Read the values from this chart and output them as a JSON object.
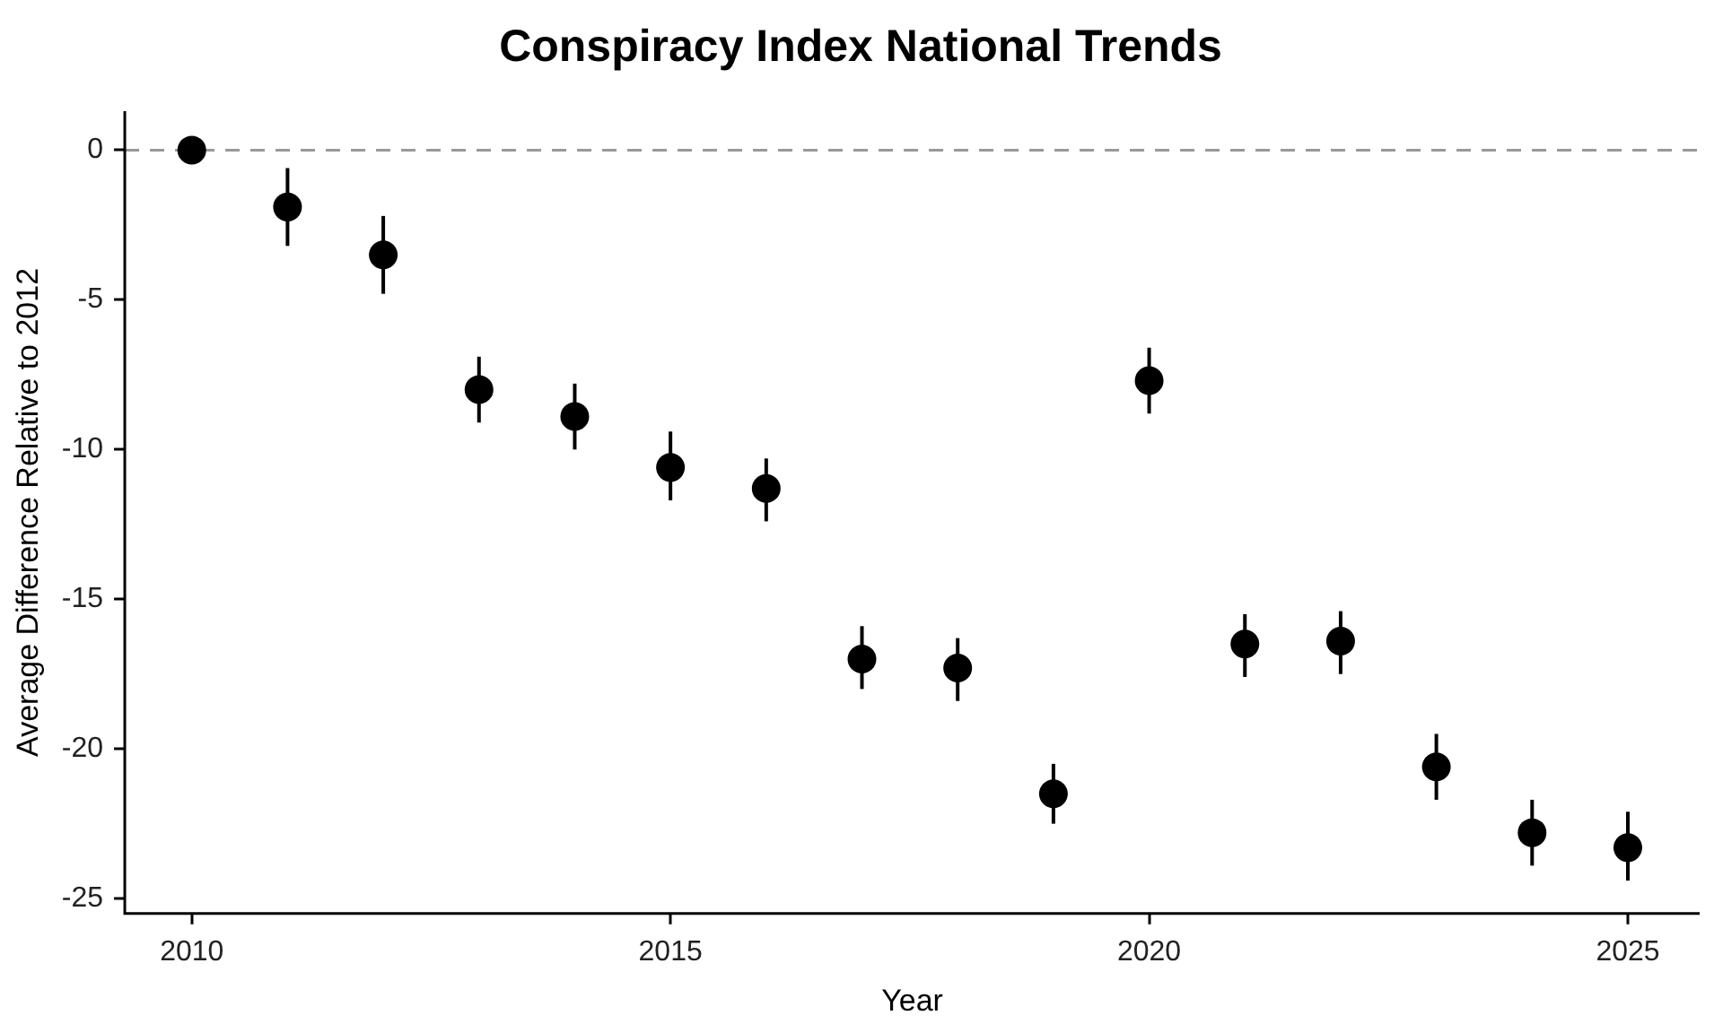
{
  "chart_data": {
    "type": "scatter",
    "title": "Conspiracy Index National Trends",
    "xlabel": "Year",
    "ylabel": "Average Difference Relative to 2012",
    "x": [
      2010,
      2011,
      2012,
      2013,
      2014,
      2015,
      2016,
      2017,
      2018,
      2019,
      2020,
      2021,
      2022,
      2023,
      2024,
      2025
    ],
    "values": [
      0,
      -1.9,
      -3.5,
      -8.0,
      -8.9,
      -10.6,
      -11.3,
      -17.0,
      -17.3,
      -21.5,
      -7.7,
      -16.5,
      -16.4,
      -20.6,
      -22.8,
      -23.3
    ],
    "errors": [
      null,
      [
        -3.2,
        -0.6
      ],
      [
        -4.8,
        -2.2
      ],
      [
        -9.1,
        -6.9
      ],
      [
        -10.0,
        -7.8
      ],
      [
        -11.7,
        -9.4
      ],
      [
        -12.4,
        -10.3
      ],
      [
        -18.0,
        -15.9
      ],
      [
        -18.4,
        -16.3
      ],
      [
        -22.5,
        -20.5
      ],
      [
        -8.8,
        -6.6
      ],
      [
        -17.6,
        -15.5
      ],
      [
        -17.5,
        -15.4
      ],
      [
        -21.7,
        -19.5
      ],
      [
        -23.9,
        -21.7
      ],
      [
        -24.4,
        -22.1
      ]
    ],
    "color": "#000000",
    "marker": "circle",
    "xlim": [
      2009.3,
      2025.75
    ],
    "xticks": [
      2010,
      2015,
      2020,
      2025
    ],
    "ylim": [
      -25.5,
      1.3
    ],
    "yticks": [
      -25,
      -20,
      -15,
      -10,
      -5,
      0
    ],
    "ref_lines": [
      {
        "axis": "y",
        "value": 0,
        "color": "#999999",
        "line_style": "dashed"
      }
    ],
    "grid": false,
    "legend": false
  }
}
